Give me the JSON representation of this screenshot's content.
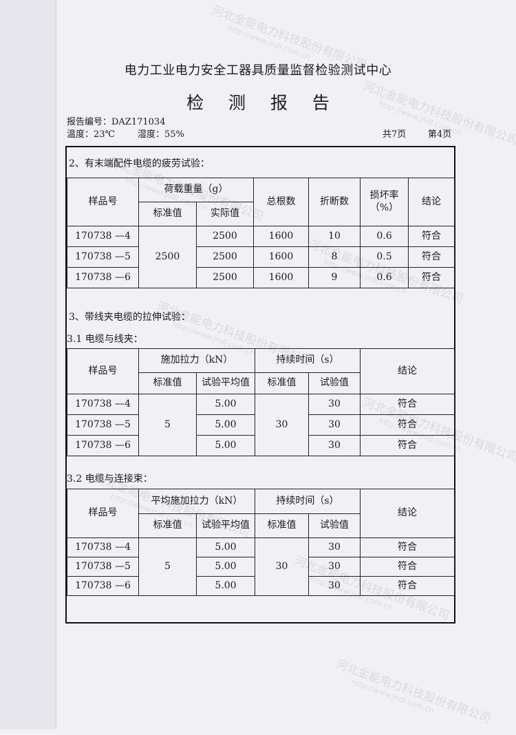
{
  "watermark": {
    "company": "河北金能电力科技股份有限公司",
    "url": "http://www.jndl.com.cn"
  },
  "header": {
    "organization": "电力工业电力安全工器具质量监督检验测试中心",
    "title": "检 测 报 告",
    "report_no": "报告编号：DAZ171034",
    "temperature": "温度：23℃",
    "humidity": "湿度：55%",
    "total_pages": "共7页",
    "page": "第4页"
  },
  "section2": {
    "title": "2、有末端配件电缆的疲劳试验：",
    "headers": {
      "sample": "样品号",
      "load": "荷载重量（g）",
      "standard": "标准值",
      "actual": "实际值",
      "total": "总根数",
      "broken": "折断数",
      "damage_rate": "损坏率（%）",
      "conclusion": "结论"
    },
    "standard_value": "2500",
    "rows": [
      {
        "sample": "170738 —4",
        "actual": "2500",
        "total": "1600",
        "broken": "10",
        "rate": "0.6",
        "conclusion": "符合"
      },
      {
        "sample": "170738 —5",
        "actual": "2500",
        "total": "1600",
        "broken": "8",
        "rate": "0.5",
        "conclusion": "符合"
      },
      {
        "sample": "170738 —6",
        "actual": "2500",
        "total": "1600",
        "broken": "9",
        "rate": "0.6",
        "conclusion": "符合"
      }
    ]
  },
  "section3": {
    "title": "3、带线夹电缆的拉伸试验：",
    "sub1": {
      "title": "3.1 电缆与线夹：",
      "headers": {
        "sample": "样品号",
        "force": "施加拉力（kN）",
        "standard": "标准值",
        "avg": "试验平均值",
        "duration": "持续时间（s）",
        "std2": "标准值",
        "test": "试验值",
        "conclusion": "结论"
      },
      "force_standard": "5",
      "duration_standard": "30",
      "rows": [
        {
          "sample": "170738 —4",
          "avg": "5.00",
          "test": "30",
          "conclusion": "符合"
        },
        {
          "sample": "170738 —5",
          "avg": "5.00",
          "test": "30",
          "conclusion": "符合"
        },
        {
          "sample": "170738 —6",
          "avg": "5.00",
          "test": "30",
          "conclusion": "符合"
        }
      ]
    },
    "sub2": {
      "title": "3.2 电缆与连接束：",
      "headers": {
        "sample": "样品号",
        "force": "平均施加拉力（kN）",
        "standard": "标准值",
        "avg": "试验平均值",
        "duration": "持续时间（s）",
        "std2": "标准值",
        "test": "试验值",
        "conclusion": "结论"
      },
      "force_standard": "5",
      "duration_standard": "30",
      "rows": [
        {
          "sample": "170738 —4",
          "avg": "5.00",
          "test": "30",
          "conclusion": "符合"
        },
        {
          "sample": "170738 —5",
          "avg": "5.00",
          "test": "30",
          "conclusion": "符合"
        },
        {
          "sample": "170738 —6",
          "avg": "5.00",
          "test": "30",
          "conclusion": "符合"
        }
      ]
    }
  }
}
